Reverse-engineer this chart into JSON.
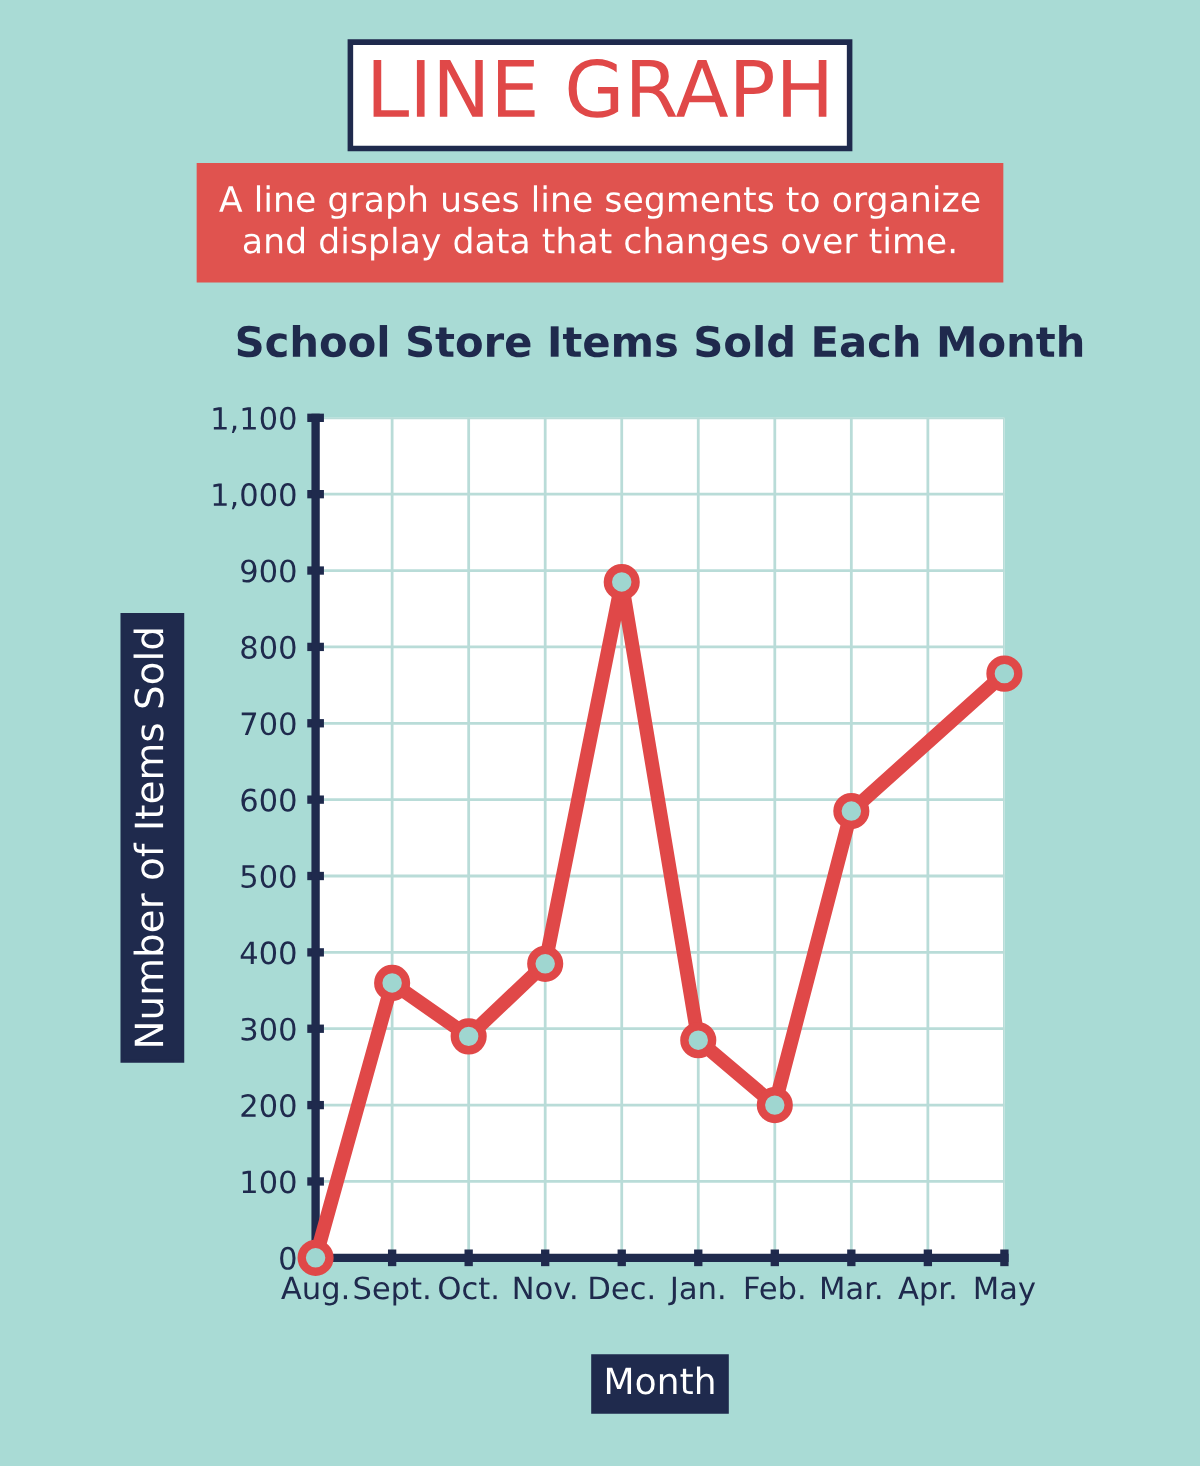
{
  "chart_data": {
    "type": "line",
    "title": "School Store Items Sold Each Month",
    "annotations": [
      "LINE GRAPH",
      "A line graph uses line segments to organize\nand display data that changes over time."
    ],
    "xlabel": "Month",
    "ylabel": "Number of Items Sold",
    "categories": [
      "Aug.",
      "Sept.",
      "Oct.",
      "Nov.",
      "Dec.",
      "Jan.",
      "Feb.",
      "Mar.",
      "Apr.",
      "May"
    ],
    "series": [
      {
        "color": "#e04848",
        "values": [
          0,
          360,
          290,
          385,
          885,
          285,
          200,
          585,
          null,
          765
        ]
      }
    ],
    "ylim": [
      0,
      1100
    ],
    "yticks": [
      0,
      100,
      200,
      300,
      400,
      500,
      600,
      700,
      800,
      900,
      {
        "value": 1000,
        "label": "1,000"
      },
      {
        "value": 1100,
        "label": "1,100"
      }
    ],
    "grid": true,
    "marker": "circle",
    "line_style": "solid"
  }
}
